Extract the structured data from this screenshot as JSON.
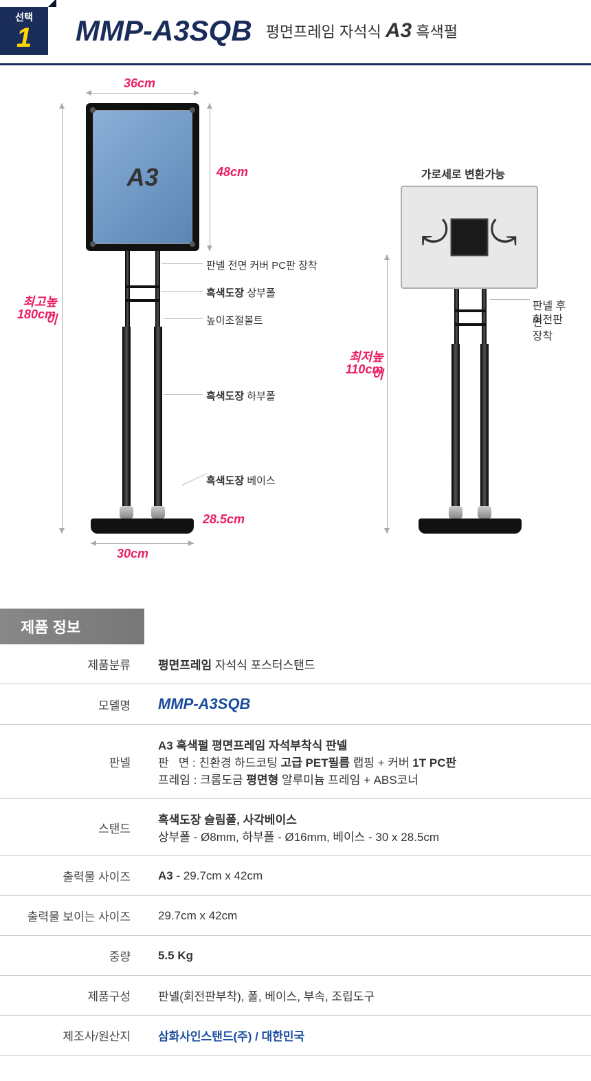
{
  "badge": {
    "small": "선택",
    "num": "1"
  },
  "title": {
    "main": "MMP-A3SQB",
    "sub_pre": "평면프레임 자석식 ",
    "sub_bold": "A3",
    "sub_post": " 흑색펄"
  },
  "left": {
    "width_label": "36cm",
    "panel_text": "A3",
    "height_panel": "48cm",
    "max_height_1": "최고높이",
    "max_height_2": "180cm",
    "base_w": "30cm",
    "base_d": "28.5cm",
    "c1": "판넬 전면 커버 PC판 장착",
    "c2b": "흑색도장",
    "c2": " 상부폴",
    "c3": "높이조절볼트",
    "c4b": "흑색도장",
    "c4": " 하부폴",
    "c5b": "흑색도장",
    "c5": " 베이스"
  },
  "right": {
    "top_text": "가로세로 변환가능",
    "min_h_1": "최저높이",
    "min_h_2": "110cm",
    "back_1": "판넬 후면",
    "back_2": "회전판장착"
  },
  "info_header": "제품 정보",
  "spec": [
    {
      "label": "제품분류",
      "html": "<b>평면프레임</b> 자석식 포스터스탠드"
    },
    {
      "label": "모델명",
      "html": "<span class='model-val'>MMP-A3SQB</span>"
    },
    {
      "label": "판넬",
      "html": "<b>A3 흑색펄 평면프레임 자석부착식 판넬</b><br>판&nbsp;&nbsp;&nbsp;면 : 친환경 하드코팅 <b>고급 PET필름</b> 랩핑 + 커버 <b>1T PC판</b><br>프레임 : 크롬도금 <b>평면형</b> 알루미늄 프레임 + ABS코너"
    },
    {
      "label": "스탠드",
      "html": "<b>흑색도장 슬림폴, 사각베이스</b><br>상부폴 - Ø8mm, 하부폴 - Ø16mm, 베이스 - 30 x 28.5cm"
    },
    {
      "label": "출력물 사이즈",
      "html": "<b>A3</b> - 29.7cm x 42cm"
    },
    {
      "label": "출력물 보이는 사이즈",
      "html": "29.7cm x 42cm"
    },
    {
      "label": "중량",
      "html": "<b>5.5 Kg</b>"
    },
    {
      "label": "제품구성",
      "html": "판넬(회전판부착), 폴, 베이스, 부속, 조립도구"
    },
    {
      "label": "제조사/원산지",
      "html": "<span class='mfr-val'>삼화사인스탠드(주) / 대한민국</span>"
    }
  ]
}
